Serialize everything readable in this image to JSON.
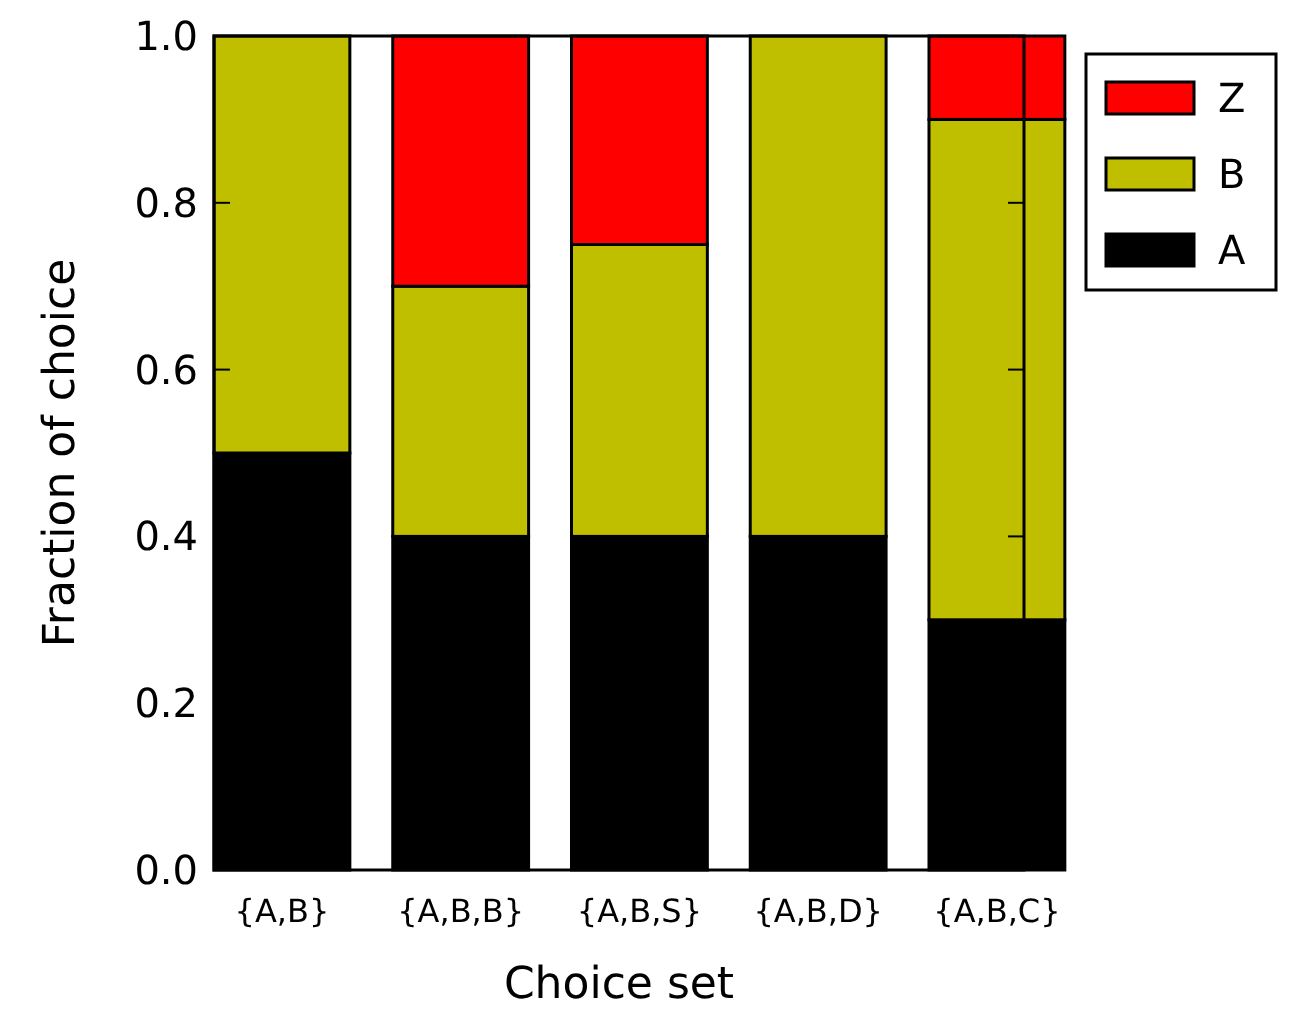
{
  "chart_data": {
    "type": "bar",
    "stacked": true,
    "xlabel": "Choice set",
    "ylabel": "Fraction of choice",
    "categories": [
      "{A,B}",
      "{A,B,B}",
      "{A,B,S}",
      "{A,B,D}",
      "{A,B,C}"
    ],
    "series": [
      {
        "name": "A",
        "color": "#000000",
        "values": [
          0.5,
          0.4,
          0.4,
          0.4,
          0.3
        ]
      },
      {
        "name": "B",
        "color": "#bfbf00",
        "values": [
          0.5,
          0.3,
          0.35,
          0.6,
          0.6
        ]
      },
      {
        "name": "Z",
        "color": "#ff0000",
        "values": [
          0,
          0.3,
          0.25,
          0,
          0.1
        ]
      }
    ],
    "ylim": [
      0,
      1
    ],
    "yticks": [
      {
        "value": 0,
        "label": "0.0"
      },
      {
        "value": 0.2,
        "label": "0.2"
      },
      {
        "value": 0.4,
        "label": "0.4"
      },
      {
        "value": 0.6,
        "label": "0.6"
      },
      {
        "value": 0.8,
        "label": "0.8"
      },
      {
        "value": 1,
        "label": "1.0"
      }
    ],
    "grid": false,
    "legend": "right"
  }
}
